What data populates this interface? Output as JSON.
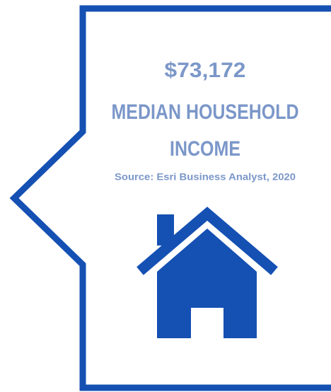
{
  "figure": {
    "value": "$73,172",
    "label_lines": [
      "MEDIAN HOUSEHOLD",
      "INCOME"
    ],
    "source": "Source: Esri Business Analyst, 2020"
  }
}
